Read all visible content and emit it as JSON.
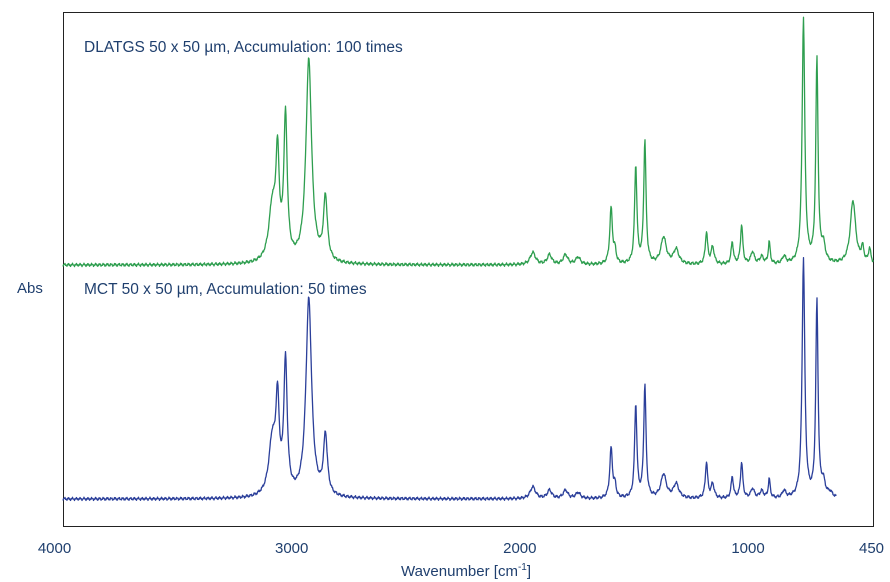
{
  "chart_data": {
    "type": "line",
    "xlabel": "Wavenumber [cm",
    "xlabel_sup": "-1",
    "xlabel_close": "]",
    "ylabel": "Abs",
    "xlim": [
      4000,
      450
    ],
    "x_reversed": true,
    "xticks": [
      4000,
      3000,
      2000,
      1000,
      450
    ],
    "grid": false,
    "series": [
      {
        "name": "DLATGS 50 x 50 µm, Accumulation: 100 times",
        "color": "#2e9e4f",
        "baseline": 0,
        "peaks": [
          {
            "x": 3085,
            "h": 0.22,
            "w": 18
          },
          {
            "x": 3062,
            "h": 0.4,
            "w": 9
          },
          {
            "x": 3027,
            "h": 0.58,
            "w": 9
          },
          {
            "x": 2925,
            "h": 0.83,
            "w": 15
          },
          {
            "x": 2852,
            "h": 0.26,
            "w": 10
          },
          {
            "x": 1943,
            "h": 0.05,
            "w": 14
          },
          {
            "x": 1870,
            "h": 0.04,
            "w": 12
          },
          {
            "x": 1800,
            "h": 0.04,
            "w": 12
          },
          {
            "x": 1745,
            "h": 0.03,
            "w": 12
          },
          {
            "x": 1600,
            "h": 0.23,
            "w": 7
          },
          {
            "x": 1583,
            "h": 0.05,
            "w": 6
          },
          {
            "x": 1492,
            "h": 0.4,
            "w": 6
          },
          {
            "x": 1452,
            "h": 0.5,
            "w": 6
          },
          {
            "x": 1370,
            "h": 0.11,
            "w": 14
          },
          {
            "x": 1315,
            "h": 0.06,
            "w": 14
          },
          {
            "x": 1182,
            "h": 0.13,
            "w": 6
          },
          {
            "x": 1155,
            "h": 0.07,
            "w": 8
          },
          {
            "x": 1069,
            "h": 0.09,
            "w": 6
          },
          {
            "x": 1028,
            "h": 0.16,
            "w": 6
          },
          {
            "x": 980,
            "h": 0.05,
            "w": 9
          },
          {
            "x": 940,
            "h": 0.03,
            "w": 10
          },
          {
            "x": 907,
            "h": 0.09,
            "w": 5
          },
          {
            "x": 842,
            "h": 0.03,
            "w": 9
          },
          {
            "x": 757,
            "h": 1.0,
            "w": 7
          },
          {
            "x": 698,
            "h": 0.83,
            "w": 6
          },
          {
            "x": 670,
            "h": 0.07,
            "w": 10
          },
          {
            "x": 540,
            "h": 0.26,
            "w": 14
          },
          {
            "x": 498,
            "h": 0.06,
            "w": 7
          },
          {
            "x": 467,
            "h": 0.06,
            "w": 6
          }
        ]
      },
      {
        "name": "MCT 50 x 50 µm, Accumulation: 50 times",
        "color": "#2b3f9a",
        "baseline": 0,
        "peaks": [
          {
            "x": 3085,
            "h": 0.23,
            "w": 18
          },
          {
            "x": 3062,
            "h": 0.36,
            "w": 9
          },
          {
            "x": 3027,
            "h": 0.55,
            "w": 9
          },
          {
            "x": 2925,
            "h": 0.83,
            "w": 15
          },
          {
            "x": 2852,
            "h": 0.25,
            "w": 10
          },
          {
            "x": 1943,
            "h": 0.05,
            "w": 14
          },
          {
            "x": 1870,
            "h": 0.035,
            "w": 12
          },
          {
            "x": 1800,
            "h": 0.035,
            "w": 12
          },
          {
            "x": 1745,
            "h": 0.025,
            "w": 12
          },
          {
            "x": 1600,
            "h": 0.21,
            "w": 7
          },
          {
            "x": 1583,
            "h": 0.05,
            "w": 6
          },
          {
            "x": 1492,
            "h": 0.39,
            "w": 6
          },
          {
            "x": 1452,
            "h": 0.47,
            "w": 6
          },
          {
            "x": 1370,
            "h": 0.1,
            "w": 14
          },
          {
            "x": 1315,
            "h": 0.06,
            "w": 14
          },
          {
            "x": 1182,
            "h": 0.15,
            "w": 6
          },
          {
            "x": 1155,
            "h": 0.06,
            "w": 8
          },
          {
            "x": 1069,
            "h": 0.09,
            "w": 6
          },
          {
            "x": 1028,
            "h": 0.15,
            "w": 6
          },
          {
            "x": 980,
            "h": 0.04,
            "w": 9
          },
          {
            "x": 940,
            "h": 0.03,
            "w": 10
          },
          {
            "x": 907,
            "h": 0.08,
            "w": 5
          },
          {
            "x": 842,
            "h": 0.03,
            "w": 9
          },
          {
            "x": 757,
            "h": 1.0,
            "w": 7
          },
          {
            "x": 698,
            "h": 0.82,
            "w": 6
          },
          {
            "x": 670,
            "h": 0.06,
            "w": 10
          },
          {
            "x": 640,
            "h": 0.02,
            "w": 12
          }
        ],
        "x_end": 610
      }
    ]
  }
}
